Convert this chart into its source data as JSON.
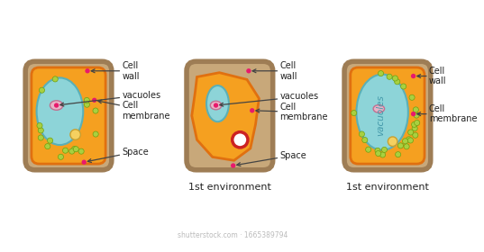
{
  "bg_color": "#ffffff",
  "cell_wall_fill": "#c8a87a",
  "cell_wall_stroke": "#9e7d55",
  "cell_wall_lw": 5,
  "orange_fill": "#f5a020",
  "orange_stroke": "#e07010",
  "vacuole_fill": "#8dd4d8",
  "vacuole_stroke": "#5ab0b8",
  "nucleus_fill": "#e8b4c8",
  "nucleus_stroke": "#c07090",
  "green_dot_fill": "#a8d040",
  "green_dot_stroke": "#70a010",
  "pink_dot_color": "#e8196c",
  "yellow_fill": "#f5d060",
  "yellow_stroke": "#c8a030",
  "red_ring_color": "#cc2222",
  "label_color": "#222222",
  "label_fs": 7,
  "subtitle_fs": 8,
  "arrow_color": "#444444",
  "watermark": "shutterstock.com · 1665389794",
  "watermark_color": "#bbbbbb",
  "cell1_labels": [
    "Cell\nwall",
    "vacuoles",
    "Cell\nmembrane",
    "Space"
  ],
  "cell2_labels": [
    "Cell\nwall",
    "vacuoles",
    "Cell\nmembrane",
    "Space"
  ],
  "cell3_labels": [
    "Cell\nwall",
    "Cell\nmembrane"
  ],
  "subtitle2": "1st environment",
  "subtitle3": "1st environment"
}
